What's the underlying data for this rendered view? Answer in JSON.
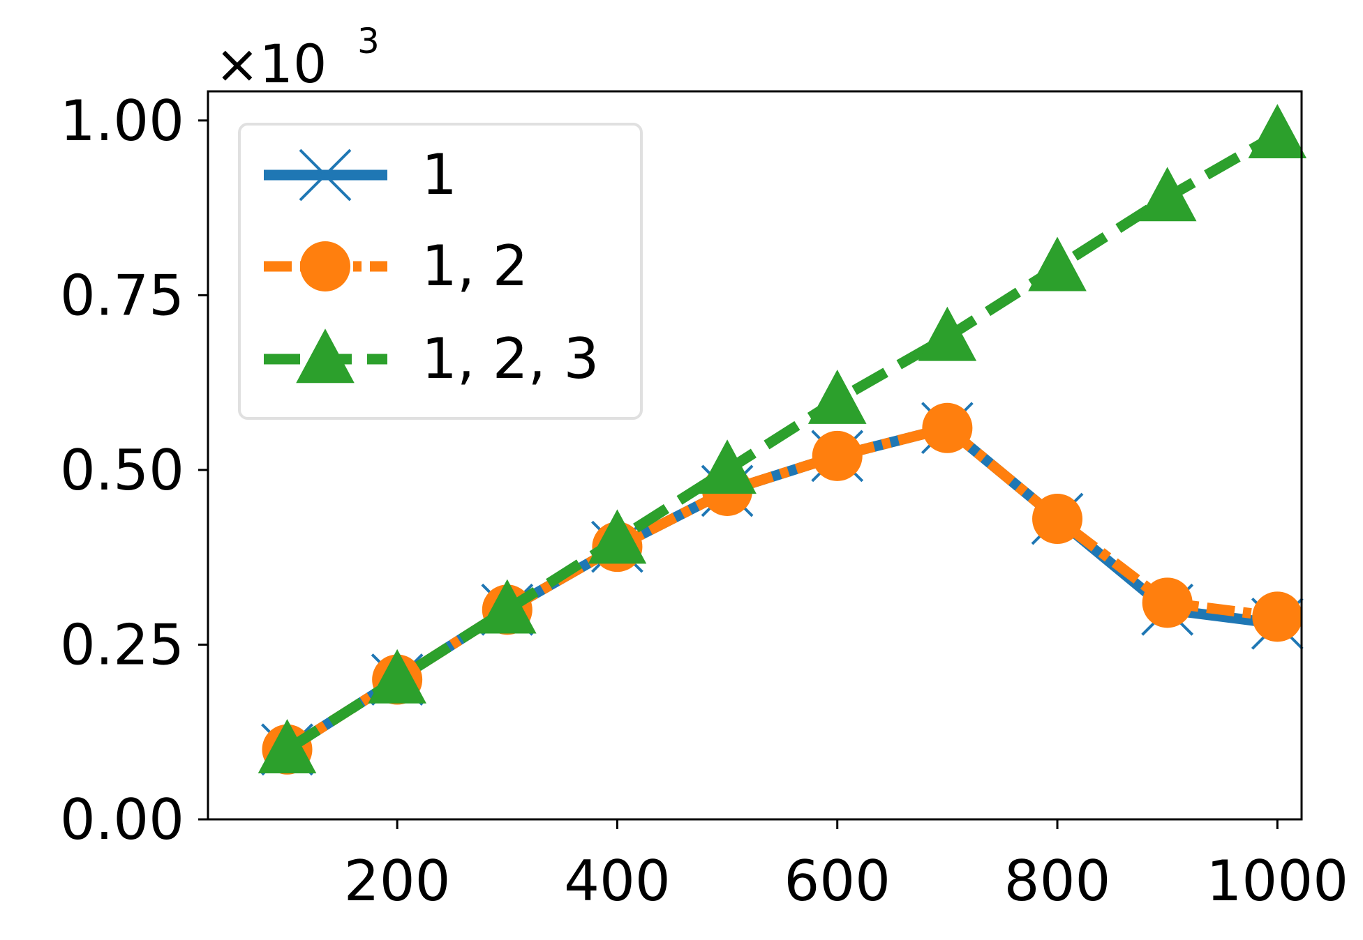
{
  "chart_data": {
    "type": "line",
    "title": "",
    "xlabel": "",
    "ylabel": "",
    "y_offset_label": {
      "base": "×10",
      "exponent": "3"
    },
    "x": [
      100,
      200,
      300,
      400,
      500,
      600,
      700,
      800,
      900,
      1000
    ],
    "xlim": [
      28,
      1022
    ],
    "ylim": [
      0,
      1.0417
    ],
    "xticks": [
      {
        "value": 200,
        "label": "200"
      },
      {
        "value": 400,
        "label": "400"
      },
      {
        "value": 600,
        "label": "600"
      },
      {
        "value": 800,
        "label": "800"
      },
      {
        "value": 1000,
        "label": "1000"
      }
    ],
    "yticks": [
      {
        "value": 0,
        "label": "0.00"
      },
      {
        "value": 0.25,
        "label": "0.25"
      },
      {
        "value": 0.5,
        "label": "0.50"
      },
      {
        "value": 0.75,
        "label": "0.75"
      },
      {
        "value": 1.0,
        "label": "1.00"
      }
    ],
    "grid": false,
    "legend_position": "upper-left",
    "series": [
      {
        "name": "1",
        "color": "#1f77b4",
        "marker": "x",
        "linestyle": "solid",
        "values": [
          0.1,
          0.2,
          0.3,
          0.39,
          0.47,
          0.52,
          0.56,
          0.43,
          0.3,
          0.28
        ]
      },
      {
        "name": "1, 2",
        "color": "#ff7f0e",
        "marker": "circle",
        "linestyle": "dashdot",
        "values": [
          0.1,
          0.2,
          0.3,
          0.39,
          0.47,
          0.52,
          0.56,
          0.43,
          0.31,
          0.29
        ]
      },
      {
        "name": "1, 2, 3",
        "color": "#2ca02c",
        "marker": "triangle",
        "linestyle": "dashed",
        "values": [
          0.1,
          0.2,
          0.3,
          0.4,
          0.5,
          0.6,
          0.69,
          0.79,
          0.89,
          0.98
        ]
      }
    ]
  }
}
